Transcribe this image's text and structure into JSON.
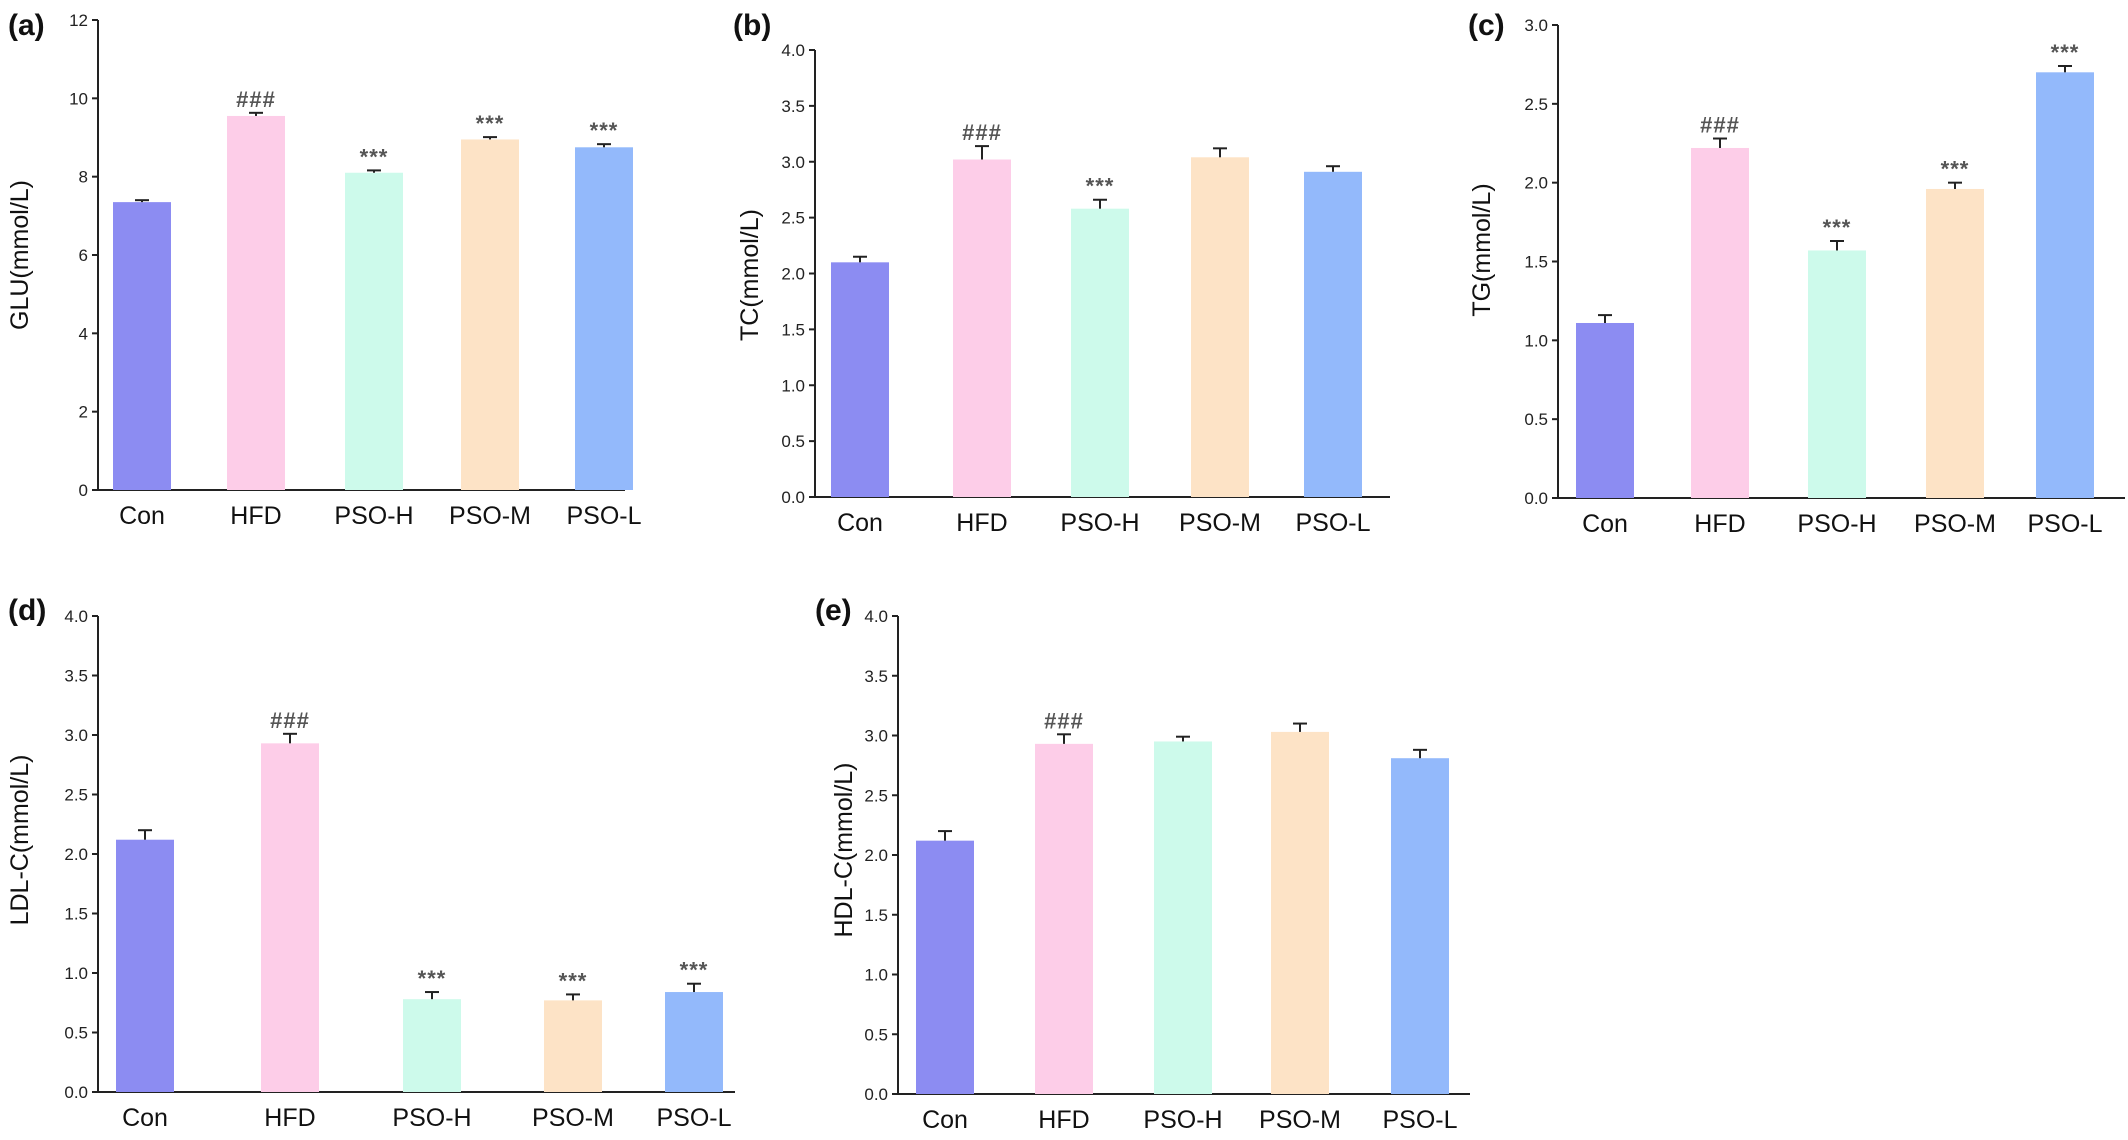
{
  "chart_data": [
    {
      "panel": "(a)",
      "type": "bar",
      "ylabel": "GLU(mmol/L)",
      "ylim": [
        0,
        12
      ],
      "yticks": [
        "0",
        "2",
        "4",
        "6",
        "8",
        "10",
        "12"
      ],
      "categories": [
        "Con",
        "HFD",
        "PSO-H",
        "PSO-M",
        "PSO-L"
      ],
      "values": [
        7.35,
        9.55,
        8.1,
        8.95,
        8.75
      ],
      "errors": [
        0.05,
        0.08,
        0.06,
        0.06,
        0.08
      ],
      "annotations": [
        "",
        "###",
        "***",
        "***",
        "***"
      ],
      "grid": false
    },
    {
      "panel": "(b)",
      "type": "bar",
      "ylabel": "TC(mmol/L)",
      "ylim": [
        0,
        4.0
      ],
      "yticks": [
        "0.0",
        "0.5",
        "1.0",
        "1.5",
        "2.0",
        "2.5",
        "3.0",
        "3.5",
        "4.0"
      ],
      "categories": [
        "Con",
        "HFD",
        "PSO-H",
        "PSO-M",
        "PSO-L"
      ],
      "values": [
        2.1,
        3.02,
        2.58,
        3.04,
        2.91
      ],
      "errors": [
        0.05,
        0.12,
        0.08,
        0.08,
        0.05
      ],
      "annotations": [
        "",
        "###",
        "***",
        "",
        ""
      ],
      "grid": false
    },
    {
      "panel": "(c)",
      "type": "bar",
      "ylabel": "TG(mmol/L)",
      "ylim": [
        0,
        3.0
      ],
      "yticks": [
        "0.0",
        "0.5",
        "1.0",
        "1.5",
        "2.0",
        "2.5",
        "3.0"
      ],
      "categories": [
        "Con",
        "HFD",
        "PSO-H",
        "PSO-M",
        "PSO-L"
      ],
      "values": [
        1.11,
        2.22,
        1.57,
        1.96,
        2.7
      ],
      "errors": [
        0.05,
        0.06,
        0.06,
        0.04,
        0.04
      ],
      "annotations": [
        "",
        "###",
        "***",
        "***",
        "***"
      ],
      "grid": false
    },
    {
      "panel": "(d)",
      "type": "bar",
      "ylabel": "LDL-C(mmol/L)",
      "ylim": [
        0,
        4.0
      ],
      "yticks": [
        "0.0",
        "0.5",
        "1.0",
        "1.5",
        "2.0",
        "2.5",
        "3.0",
        "3.5",
        "4.0"
      ],
      "categories": [
        "Con",
        "HFD",
        "PSO-H",
        "PSO-M",
        "PSO-L"
      ],
      "values": [
        2.12,
        2.93,
        0.78,
        0.77,
        0.84
      ],
      "errors": [
        0.08,
        0.08,
        0.06,
        0.05,
        0.07
      ],
      "annotations": [
        "",
        "###",
        "***",
        "***",
        "***"
      ],
      "grid": false
    },
    {
      "panel": "(e)",
      "type": "bar",
      "ylabel": "HDL-C(mmol/L)",
      "ylim": [
        0,
        4.0
      ],
      "yticks": [
        "0.0",
        "0.5",
        "1.0",
        "1.5",
        "2.0",
        "2.5",
        "3.0",
        "3.5",
        "4.0"
      ],
      "categories": [
        "Con",
        "HFD",
        "PSO-H",
        "PSO-M",
        "PSO-L"
      ],
      "values": [
        2.12,
        2.93,
        2.95,
        3.03,
        2.81
      ],
      "errors": [
        0.08,
        0.08,
        0.04,
        0.07,
        0.07
      ],
      "annotations": [
        "",
        "###",
        "",
        "",
        ""
      ],
      "grid": false
    }
  ],
  "colors": {
    "Con": "#8c8cf2",
    "HFD": "#fdcde8",
    "PSO-H": "#cdfaeb",
    "PSO-M": "#fde3c6",
    "PSO-L": "#93b9fb",
    "error_bar": "#222222",
    "annotation": "#555555"
  }
}
